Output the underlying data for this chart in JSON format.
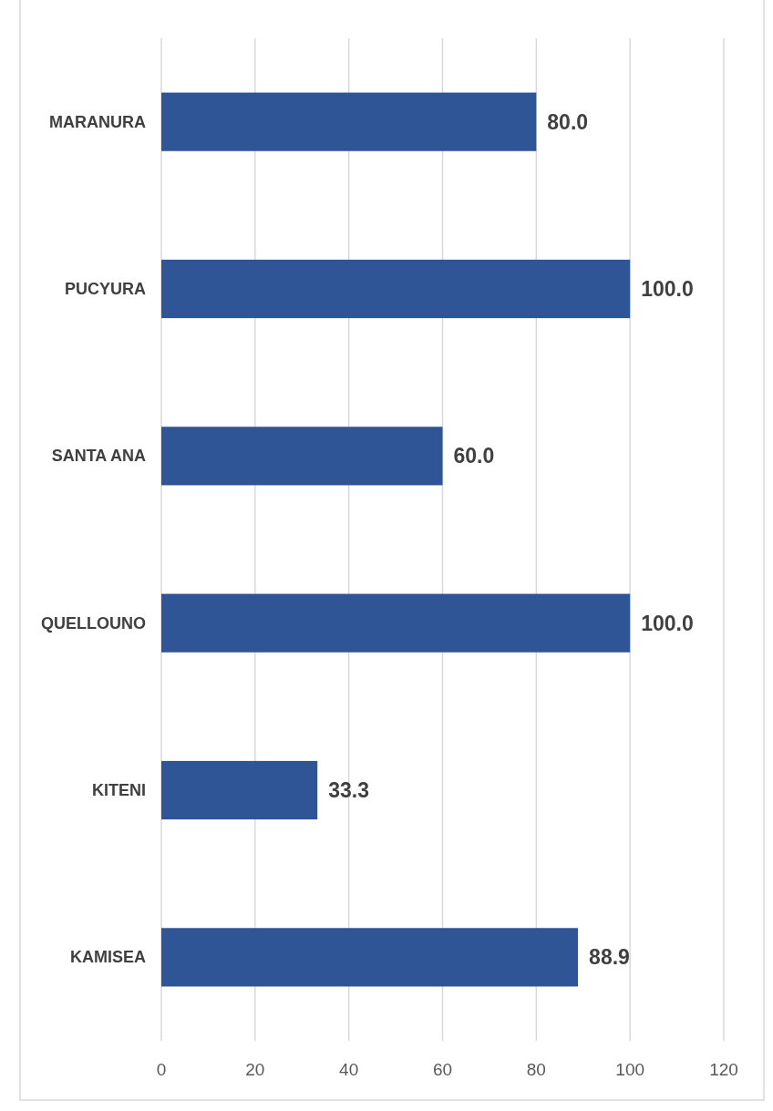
{
  "chart_data": {
    "type": "bar",
    "orientation": "horizontal",
    "categories": [
      "MARANURA",
      "PUCYURA",
      "SANTA ANA",
      "QUELLOUNO",
      "KITENI",
      "KAMISEA"
    ],
    "values": [
      80.0,
      100.0,
      60.0,
      100.0,
      33.3,
      88.9
    ],
    "color": "#2f5597",
    "value_labels": [
      "80.0",
      "100.0",
      "60.0",
      "100.0",
      "33.3",
      "88.9"
    ],
    "xlim": [
      0,
      120
    ],
    "xticks": [
      0,
      20,
      40,
      60,
      80,
      100,
      120
    ],
    "grid": "x"
  }
}
